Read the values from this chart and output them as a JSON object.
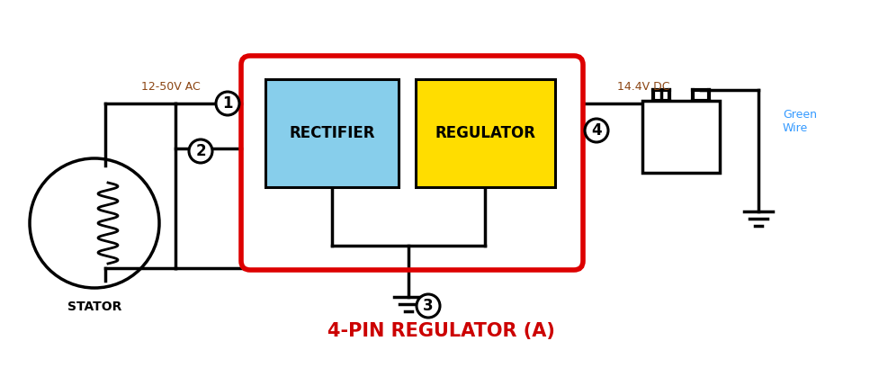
{
  "bg_color": "#ffffff",
  "title": "4-PIN REGULATOR (A)",
  "title_color": "#cc0000",
  "title_fontsize": 15,
  "rectifier_color": "#87ceeb",
  "regulator_color": "#ffdd00",
  "box_border_color": "#dd0000",
  "wire_color": "#000000",
  "label_ac": "12-50V AC",
  "label_dc": "14.4V DC",
  "label_stator": "STATOR",
  "label_green": "Green\nWire",
  "label_rectifier": "RECTIFIER",
  "label_regulator": "REGULATOR",
  "green_wire_color": "#3399ff",
  "label_ac_color": "#8B4513",
  "label_dc_color": "#8B4513"
}
